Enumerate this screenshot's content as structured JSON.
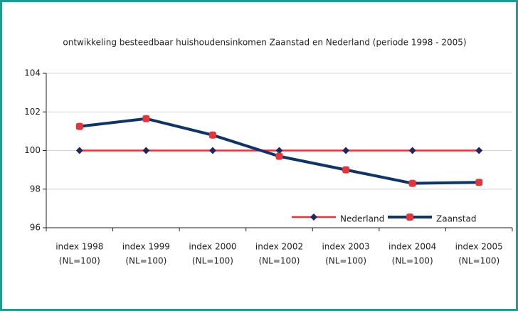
{
  "chart_data": {
    "type": "line",
    "title": "ontwikkeling besteedbaar huishoudensinkomen Zaanstad en Nederland (periode 1998 - 2005)",
    "categories": [
      [
        "index 1998",
        "(NL=100)"
      ],
      [
        "index 1999",
        "(NL=100)"
      ],
      [
        "index 2000",
        "(NL=100)"
      ],
      [
        "index 2002",
        "(NL=100)"
      ],
      [
        "index 2003",
        "(NL=100)"
      ],
      [
        "index 2004",
        "(NL=100)"
      ],
      [
        "index 2005",
        "(NL=100)"
      ]
    ],
    "series": [
      {
        "name": "Nederland",
        "color": "#e2363d",
        "marker_color": "#1f2a5c",
        "values": [
          100,
          100,
          100,
          100,
          100,
          100,
          100
        ]
      },
      {
        "name": "Zaanstad",
        "color": "#103463",
        "marker_color": "#e2363d",
        "values": [
          101.25,
          101.65,
          100.8,
          99.7,
          99.0,
          98.3,
          98.35
        ]
      }
    ],
    "ylim": [
      96,
      104
    ],
    "yticks": [
      96,
      98,
      100,
      102,
      104
    ],
    "grid": true,
    "legend": "lower right"
  }
}
